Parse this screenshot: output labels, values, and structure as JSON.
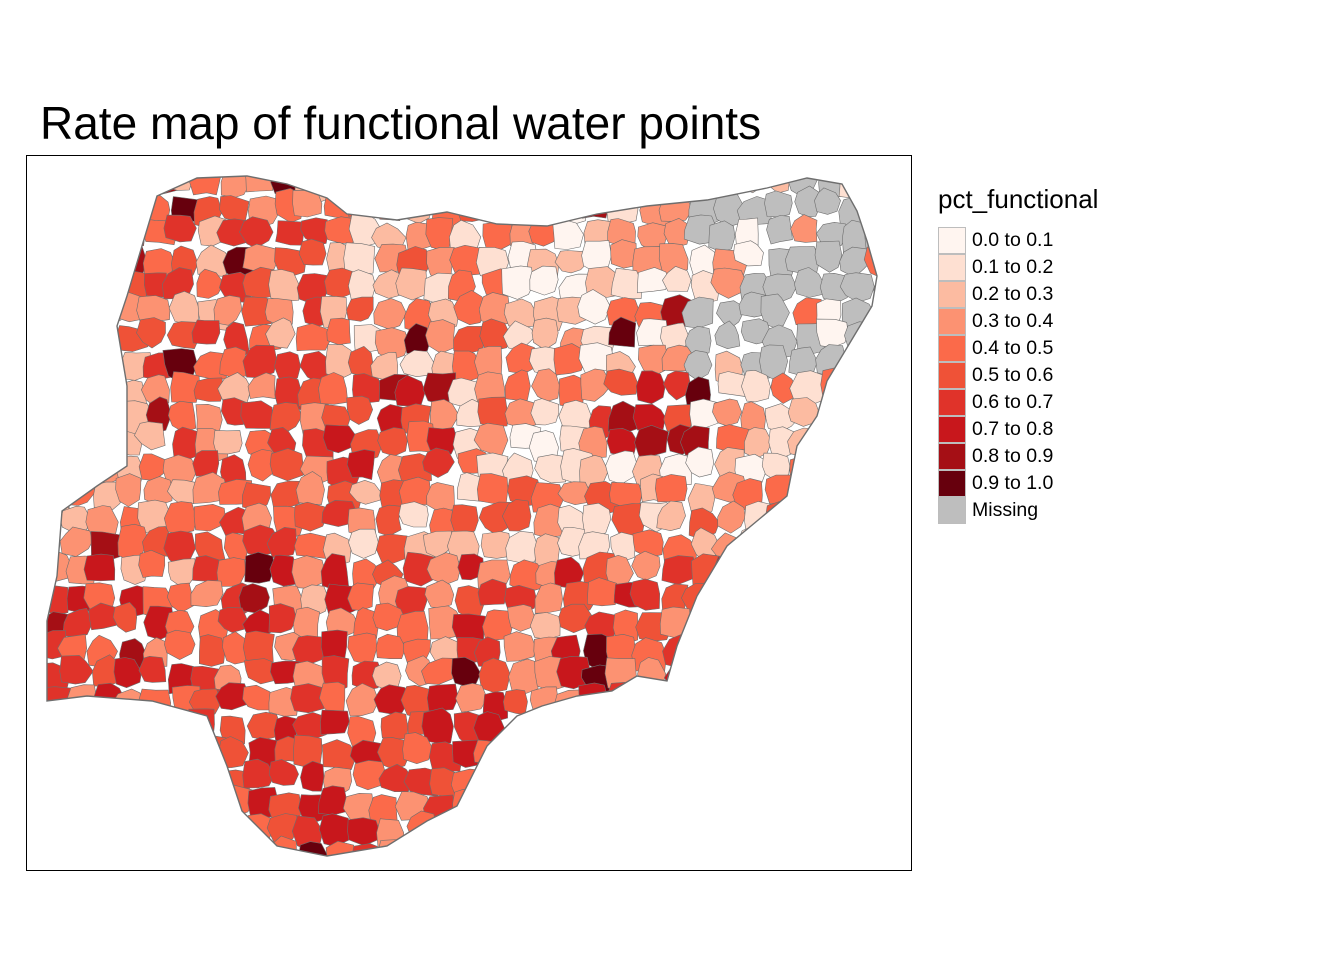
{
  "title": "Rate map of functional water points",
  "legend": {
    "title": "pct_functional",
    "items": [
      {
        "label": "0.0 to 0.1",
        "color": "#fff5f0"
      },
      {
        "label": "0.1 to 0.2",
        "color": "#fee0d2"
      },
      {
        "label": "0.2 to 0.3",
        "color": "#fcbba1"
      },
      {
        "label": "0.3 to 0.4",
        "color": "#fc9272"
      },
      {
        "label": "0.4 to 0.5",
        "color": "#fb6a4a"
      },
      {
        "label": "0.5 to 0.6",
        "color": "#ef5237"
      },
      {
        "label": "0.6 to 0.7",
        "color": "#e0332a"
      },
      {
        "label": "0.7 to 0.8",
        "color": "#c8171c"
      },
      {
        "label": "0.8 to 0.9",
        "color": "#a50f15"
      },
      {
        "label": "0.9 to 1.0",
        "color": "#67000d"
      },
      {
        "label": "Missing",
        "color": "#bebebe"
      }
    ]
  }
}
